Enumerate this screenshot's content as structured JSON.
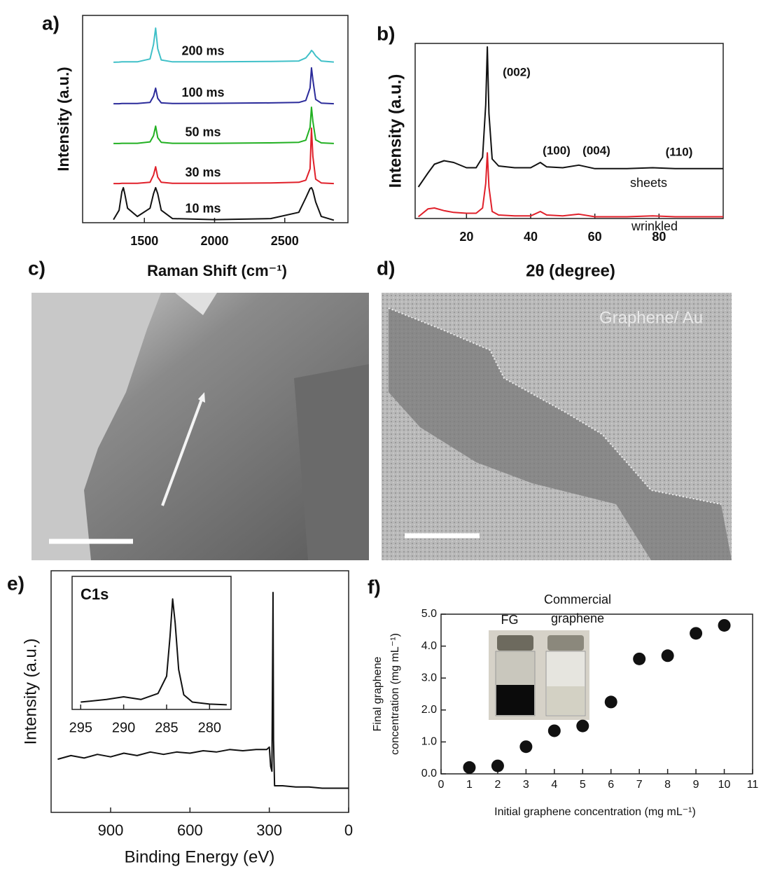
{
  "chart_data": [
    {
      "type": "line",
      "panel_label": "a)",
      "x_label": "Raman Shift (cm⁻¹)",
      "y_label": "Intensity (a.u.)",
      "x": [
        1280,
        1320,
        1340,
        1350,
        1360,
        1380,
        1450,
        1540,
        1565,
        1580,
        1595,
        1620,
        1700,
        2000,
        2400,
        2600,
        2650,
        2680,
        2690,
        2700,
        2720,
        2760,
        2850
      ],
      "xlim": [
        1060,
        2950
      ],
      "xticks": [
        1500,
        2000,
        2500
      ],
      "ylim": [
        0,
        10
      ],
      "series": [
        {
          "name": "10 ms",
          "color": "#111111",
          "values": [
            0.15,
            0.6,
            1.5,
            1.69,
            1.4,
            0.7,
            0.3,
            0.7,
            1.4,
            1.69,
            1.4,
            0.6,
            0.2,
            0.15,
            0.2,
            0.5,
            1.2,
            1.65,
            1.69,
            1.55,
            1.0,
            0.3,
            0.12
          ]
        },
        {
          "name": "30 ms",
          "color": "#e0202a",
          "values": [
            1.89,
            1.89,
            1.9,
            1.9,
            1.9,
            1.9,
            1.9,
            1.95,
            2.3,
            2.7,
            2.2,
            1.95,
            1.9,
            1.9,
            1.92,
            1.95,
            2.05,
            2.6,
            4.56,
            3.2,
            2.1,
            1.92,
            1.89
          ]
        },
        {
          "name": "50 ms",
          "color": "#22b022",
          "values": [
            3.82,
            3.82,
            3.83,
            3.83,
            3.83,
            3.83,
            3.83,
            3.9,
            4.2,
            4.66,
            4.1,
            3.88,
            3.83,
            3.83,
            3.85,
            3.88,
            3.98,
            4.6,
            5.57,
            4.9,
            4.0,
            3.85,
            3.82
          ]
        },
        {
          "name": "100 ms",
          "color": "#2b2b9a",
          "values": [
            5.74,
            5.74,
            5.75,
            5.75,
            5.75,
            5.75,
            5.75,
            5.8,
            6.1,
            6.49,
            6.0,
            5.78,
            5.75,
            5.76,
            5.78,
            5.8,
            5.9,
            6.5,
            7.47,
            6.9,
            5.95,
            5.77,
            5.74
          ]
        },
        {
          "name": "200 ms",
          "color": "#40c0c8",
          "values": [
            7.74,
            7.75,
            7.76,
            7.76,
            7.76,
            7.76,
            7.76,
            7.9,
            8.6,
            9.39,
            8.4,
            7.85,
            7.76,
            7.76,
            7.78,
            7.8,
            7.95,
            8.2,
            8.31,
            8.25,
            8.05,
            7.8,
            7.75
          ]
        }
      ]
    },
    {
      "type": "line",
      "panel_label": "b)",
      "x_label": "2θ (degree)",
      "y_label": "Intensity (a.u.)",
      "x": [
        5,
        8,
        10,
        13,
        16,
        20,
        23,
        25,
        26,
        26.5,
        27,
        28,
        30,
        35,
        40,
        43,
        45,
        50,
        55,
        60,
        70,
        78,
        85,
        100
      ],
      "xlim": [
        4,
        100
      ],
      "xticks": [
        20,
        40,
        60,
        80
      ],
      "ylim": [
        0,
        10
      ],
      "annotations": [
        "(002)",
        "(100)",
        "(004)",
        "(110)"
      ],
      "series": [
        {
          "name": "sheets",
          "color": "#111111",
          "values": [
            1.8,
            2.6,
            3.1,
            3.3,
            3.2,
            2.9,
            2.9,
            3.5,
            6.5,
            9.8,
            6.0,
            3.4,
            3.0,
            2.9,
            2.9,
            3.2,
            2.95,
            2.9,
            3.05,
            2.85,
            2.85,
            2.9,
            2.85,
            2.85
          ]
        },
        {
          "name": "wrinkled",
          "color": "#e0202a",
          "values": [
            0.1,
            0.55,
            0.6,
            0.45,
            0.35,
            0.3,
            0.3,
            0.6,
            2.0,
            3.75,
            1.8,
            0.4,
            0.2,
            0.15,
            0.15,
            0.4,
            0.2,
            0.15,
            0.25,
            0.1,
            0.1,
            0.15,
            0.1,
            0.1
          ]
        }
      ]
    },
    {
      "type": "line",
      "panel_label": "e)",
      "x_label": "Binding Energy (eV)",
      "y_label": "Intensity (a.u.)",
      "x": [
        1100,
        1050,
        1000,
        950,
        900,
        850,
        800,
        750,
        700,
        650,
        600,
        550,
        500,
        450,
        400,
        350,
        310,
        300,
        295,
        290,
        286,
        284,
        280,
        250,
        200,
        150,
        100,
        50,
        0
      ],
      "xlim": [
        1125,
        0
      ],
      "xticks": [
        900,
        600,
        300,
        0
      ],
      "ylim": [
        0,
        10
      ],
      "series": [
        {
          "color": "#111111",
          "values": [
            2.2,
            2.35,
            2.25,
            2.4,
            2.3,
            2.45,
            2.35,
            2.5,
            2.4,
            2.5,
            2.45,
            2.55,
            2.5,
            2.6,
            2.55,
            2.6,
            2.6,
            2.7,
            1.9,
            1.7,
            9.1,
            3.0,
            1.1,
            1.1,
            1.05,
            1.05,
            1.0,
            1.0,
            1.0
          ]
        }
      ]
    },
    {
      "type": "line",
      "title": "C1s",
      "x": [
        295,
        292,
        290,
        288,
        286,
        285,
        284.6,
        284.3,
        284,
        283.6,
        283,
        282,
        280,
        278
      ],
      "xlim": [
        296,
        277.5
      ],
      "xticks": [
        295,
        290,
        285,
        280
      ],
      "ylim": [
        0,
        10
      ],
      "series": [
        {
          "color": "#111111",
          "values": [
            0.55,
            0.75,
            0.95,
            0.75,
            1.2,
            2.5,
            5.5,
            8.3,
            6.5,
            3.0,
            1.1,
            0.55,
            0.4,
            0.35
          ]
        }
      ]
    },
    {
      "type": "scatter",
      "panel_label": "f)",
      "x_label": "Initial graphene concentration (mg mL⁻¹)",
      "y_label": [
        "Final graphene",
        "concentration (mg mL⁻¹)"
      ],
      "x": [
        1,
        2,
        3,
        4,
        5,
        6,
        7,
        8,
        9,
        10
      ],
      "values": [
        0.2,
        0.25,
        0.85,
        1.35,
        1.5,
        2.25,
        3.6,
        3.7,
        4.4,
        4.65
      ],
      "color": "#111111",
      "xlim": [
        0,
        11
      ],
      "xticks": [
        0,
        1,
        2,
        3,
        4,
        5,
        6,
        7,
        8,
        9,
        10,
        11
      ],
      "ylim": [
        0,
        5
      ],
      "yticks": [
        {
          "value": 0,
          "label": "0.0"
        },
        {
          "value": 1,
          "label": "1.0"
        },
        {
          "value": 2,
          "label": "2.0"
        },
        {
          "value": 3,
          "label": "3.0"
        },
        {
          "value": 4,
          "label": "4.0"
        },
        {
          "value": 5,
          "label": "5.0"
        }
      ],
      "inset_labels": [
        "FG",
        [
          "Commercial",
          "graphene"
        ]
      ]
    }
  ],
  "images": [
    {
      "panel_label": "c)"
    },
    {
      "panel_label": "d)",
      "text": "Graphene/ Au"
    }
  ]
}
